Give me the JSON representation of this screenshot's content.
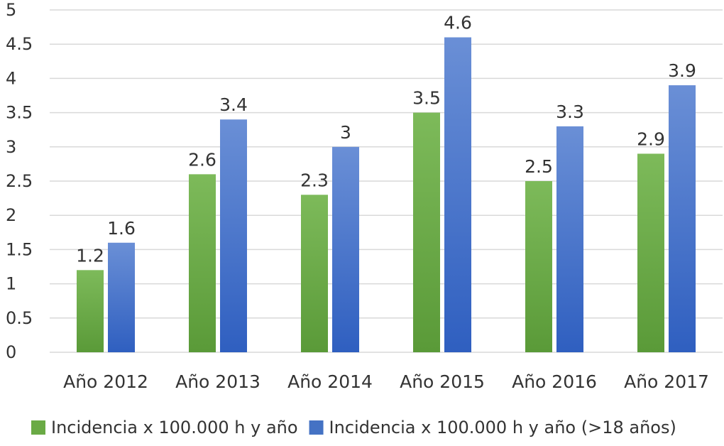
{
  "chart_data": {
    "type": "bar",
    "categories": [
      "Año 2012",
      "Año 2013",
      "Año 2014",
      "Año 2015",
      "Año 2016",
      "Año 2017"
    ],
    "series": [
      {
        "name": "Incidencia x 100.000 h y año",
        "values": [
          1.2,
          2.6,
          2.3,
          3.5,
          2.5,
          2.9
        ],
        "labels": [
          "1.2",
          "2.6",
          "2.3",
          "3.5",
          "2.5",
          "2.9"
        ],
        "color": "#6aaa45"
      },
      {
        "name": "Incidencia x 100.000 h y año (>18 años)",
        "values": [
          1.6,
          3.4,
          3.0,
          4.6,
          3.3,
          3.9
        ],
        "labels": [
          "1.6",
          "3.4",
          "3",
          "4.6",
          "3.3",
          "3.9"
        ],
        "color": "#4472c4"
      }
    ],
    "yticks": [
      "0",
      "0.5",
      "1",
      "1.5",
      "2",
      "2.5",
      "3",
      "3.5",
      "4",
      "4.5",
      "5"
    ],
    "ylim": [
      0,
      5
    ],
    "grid": true,
    "legend_position": "bottom",
    "title": "",
    "xlabel": "",
    "ylabel": ""
  }
}
